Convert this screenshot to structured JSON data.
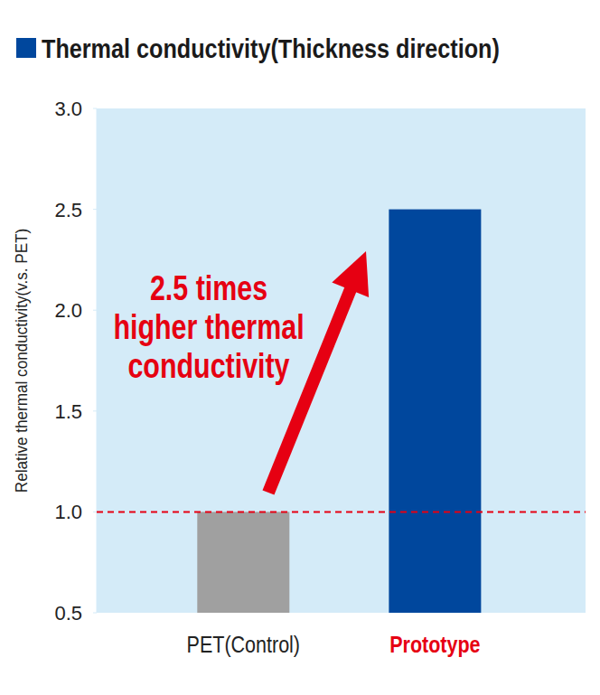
{
  "chart_data": {
    "type": "bar",
    "title": "Thermal conductivity(Thickness direction)",
    "y_label": "Relative thermal conductivity(v.s. PET)",
    "categories": [
      "PET(Control)",
      "Prototype"
    ],
    "values": [
      1.0,
      2.5
    ],
    "colors": [
      "#a0a0a0",
      "#00479d"
    ],
    "ylim": [
      0.5,
      3.0
    ],
    "yticks": [
      0.5,
      {
        "value": 1,
        "label": "1.0"
      },
      1.5,
      {
        "value": 2,
        "label": "2.0"
      },
      2.5,
      {
        "value": 3,
        "label": "3.0"
      }
    ],
    "grid": false,
    "reference_line": 1,
    "annotation": [
      "2.5 times",
      "higher thermal",
      "conductivity"
    ]
  }
}
